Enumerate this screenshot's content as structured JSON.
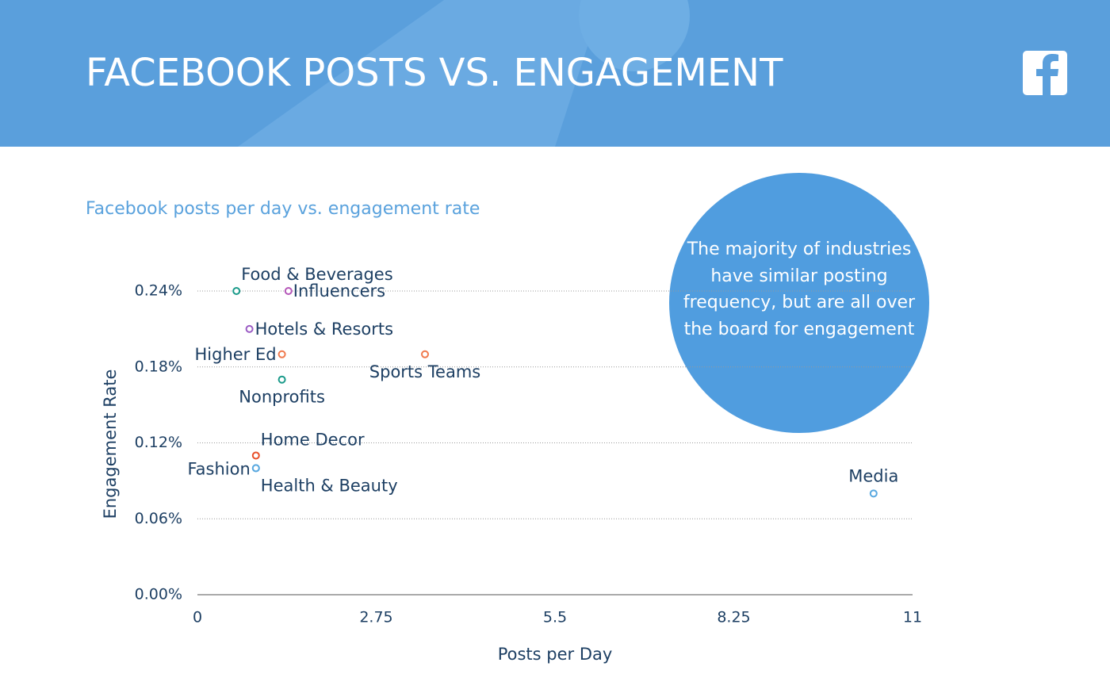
{
  "chart_data": {
    "type": "scatter",
    "title": "FACEBOOK POSTS VS. ENGAGEMENT",
    "subtitle": "Facebook posts per day vs. engagement rate",
    "annotation": "The majority of industries have similar posting frequency, but are all over the board for engagement",
    "x_label": "Posts per Day",
    "y_label": "Engagement Rate",
    "xlim": [
      0,
      11
    ],
    "xticks": [
      0,
      2.75,
      5.5,
      8.25,
      11
    ],
    "ylim": [
      0,
      0.24
    ],
    "yticks": [
      {
        "value": 0,
        "label": "0.00%"
      },
      {
        "value": 0.06,
        "label": "0.06%"
      },
      {
        "value": 0.12,
        "label": "0.12%"
      },
      {
        "value": 0.18,
        "label": "0.18%"
      },
      {
        "value": 0.24,
        "label": "0.24%"
      }
    ],
    "grid": true,
    "points": [
      {
        "label": "Food & Beverages",
        "x": 0.6,
        "y": 0.24,
        "color": "#1a9a8a"
      },
      {
        "label": "Influencers",
        "x": 1.4,
        "y": 0.24,
        "color": "#b456b8"
      },
      {
        "label": "Hotels & Resorts",
        "x": 0.8,
        "y": 0.21,
        "color": "#9b5cc4"
      },
      {
        "label": "Higher Ed",
        "x": 1.3,
        "y": 0.19,
        "color": "#f07a4e"
      },
      {
        "label": "Sports Teams",
        "x": 3.5,
        "y": 0.19,
        "color": "#f07a4e"
      },
      {
        "label": "Nonprofits",
        "x": 1.3,
        "y": 0.17,
        "color": "#1a9a8a"
      },
      {
        "label": "Home Decor",
        "x": 0.9,
        "y": 0.11,
        "color": "#e8502a"
      },
      {
        "label": "Fashion",
        "x": 0.9,
        "y": 0.1,
        "color": "#5aa9e0"
      },
      {
        "label": "Health & Beauty",
        "x": 0.9,
        "y": 0.1,
        "color": "#5aa9e0"
      },
      {
        "label": "Media",
        "x": 10.4,
        "y": 0.08,
        "color": "#5aa9e0"
      }
    ]
  }
}
